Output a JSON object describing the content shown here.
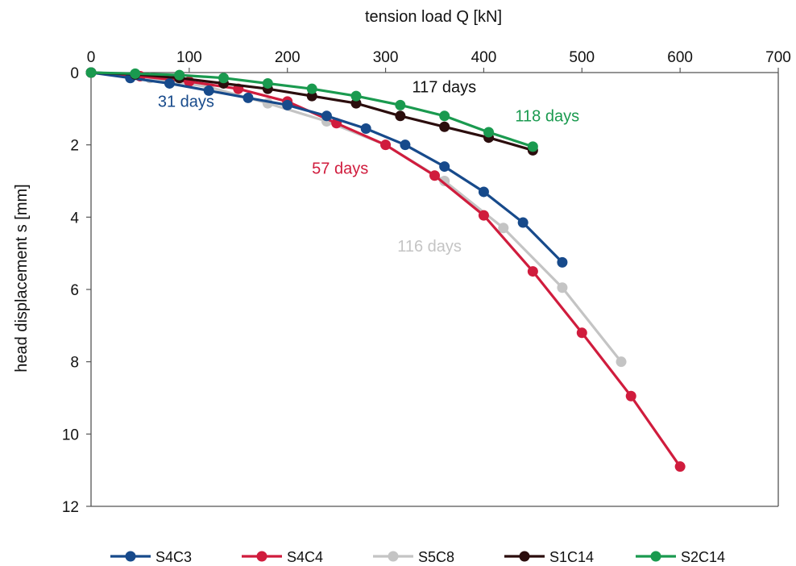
{
  "chart_data": {
    "type": "line",
    "xlabel": "tension load Q [kN]",
    "ylabel": "head displacement s [mm]",
    "xlim": [
      0,
      700
    ],
    "ylim": [
      0,
      12
    ],
    "y_inverted": true,
    "x_axis_position": "top",
    "grid": false,
    "legend_position": "bottom",
    "x_ticks": [
      "0",
      "100",
      "200",
      "300",
      "400",
      "500",
      "600",
      "700"
    ],
    "y_ticks": [
      "0",
      "2",
      "4",
      "6",
      "8",
      "10",
      "12"
    ],
    "series": [
      {
        "name": "S4C3",
        "color": "#174a8b",
        "x": [
          0,
          40,
          80,
          120,
          160,
          200,
          240,
          280,
          320,
          360,
          400,
          440,
          480
        ],
        "y": [
          0,
          0.15,
          0.3,
          0.5,
          0.7,
          0.9,
          1.2,
          1.55,
          2.0,
          2.6,
          3.3,
          4.15,
          5.25
        ]
      },
      {
        "name": "S4C4",
        "color": "#d01c3d",
        "x": [
          0,
          50,
          100,
          150,
          200,
          250,
          300,
          350,
          400,
          450,
          500,
          550,
          600
        ],
        "y": [
          0,
          0.1,
          0.25,
          0.45,
          0.8,
          1.4,
          2.0,
          2.85,
          3.95,
          5.5,
          7.2,
          8.95,
          10.9
        ]
      },
      {
        "name": "S5C8",
        "color": "#c4c4c4",
        "x": [
          0,
          60,
          120,
          180,
          240,
          300,
          360,
          420,
          480,
          540
        ],
        "y": [
          0,
          0.15,
          0.4,
          0.85,
          1.35,
          2.0,
          3.0,
          4.3,
          5.95,
          8.0
        ]
      },
      {
        "name": "S1C14",
        "color": "#2b0d0d",
        "x": [
          0,
          45,
          90,
          135,
          180,
          225,
          270,
          315,
          360,
          405,
          450
        ],
        "y": [
          0,
          0.05,
          0.15,
          0.3,
          0.45,
          0.65,
          0.85,
          1.2,
          1.5,
          1.8,
          2.15
        ]
      },
      {
        "name": "S2C14",
        "color": "#1a9a4f",
        "x": [
          0,
          45,
          90,
          135,
          180,
          225,
          270,
          315,
          360,
          405,
          450
        ],
        "y": [
          0,
          0.03,
          0.07,
          0.15,
          0.3,
          0.45,
          0.65,
          0.9,
          1.2,
          1.65,
          2.05
        ]
      }
    ],
    "annotations": [
      {
        "text": "31 days",
        "color": "#174a8b",
        "x": 68,
        "y": 0.95
      },
      {
        "text": "57 days",
        "color": "#d01c3d",
        "x": 225,
        "y": 2.8
      },
      {
        "text": "116 days",
        "color": "#c4c4c4",
        "x": 312,
        "y": 4.95
      },
      {
        "text": "117 days",
        "color": "#111111",
        "x": 327,
        "y": 0.55
      },
      {
        "text": "118 days",
        "color": "#1a9a4f",
        "x": 432,
        "y": 1.35
      }
    ]
  }
}
